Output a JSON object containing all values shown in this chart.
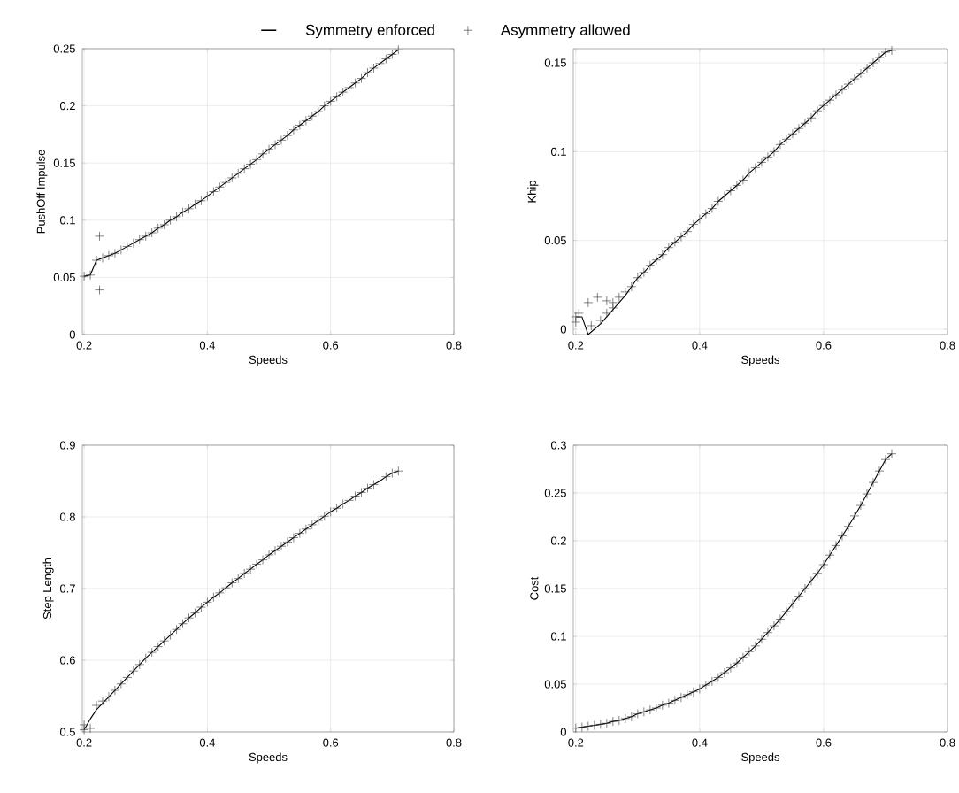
{
  "chart_data": [
    {
      "type": "line",
      "xlabel": "Speeds",
      "ylabel": "PushOff Impulse",
      "xlim": [
        0.197,
        0.8
      ],
      "ylim": [
        0,
        0.25
      ],
      "xticks": [
        0.2,
        0.4,
        0.6,
        0.8
      ],
      "yticks": [
        0,
        0.05,
        0.1,
        0.15,
        0.2,
        0.25
      ],
      "grid": true,
      "legend": "top",
      "series": [
        {
          "name": "Symmetry enforced",
          "color": "#000000",
          "x": [
            0.2,
            0.21,
            0.22,
            0.23,
            0.24,
            0.25,
            0.26,
            0.27,
            0.28,
            0.29,
            0.3,
            0.31,
            0.32,
            0.33,
            0.34,
            0.35,
            0.36,
            0.37,
            0.38,
            0.39,
            0.4,
            0.41,
            0.42,
            0.43,
            0.44,
            0.45,
            0.46,
            0.47,
            0.48,
            0.49,
            0.5,
            0.51,
            0.52,
            0.53,
            0.54,
            0.55,
            0.56,
            0.57,
            0.58,
            0.59,
            0.6,
            0.61,
            0.62,
            0.63,
            0.64,
            0.65,
            0.66,
            0.67,
            0.68,
            0.69,
            0.7,
            0.71
          ],
          "values": [
            0.051,
            0.052,
            0.065,
            0.067,
            0.069,
            0.071,
            0.074,
            0.077,
            0.08,
            0.083,
            0.086,
            0.089,
            0.093,
            0.096,
            0.1,
            0.103,
            0.107,
            0.11,
            0.114,
            0.117,
            0.121,
            0.125,
            0.129,
            0.133,
            0.137,
            0.141,
            0.145,
            0.149,
            0.153,
            0.158,
            0.162,
            0.166,
            0.17,
            0.174,
            0.179,
            0.183,
            0.187,
            0.191,
            0.195,
            0.2,
            0.204,
            0.208,
            0.212,
            0.216,
            0.22,
            0.224,
            0.229,
            0.233,
            0.237,
            0.241,
            0.245,
            0.249
          ]
        },
        {
          "name": "Asymmetry allowed",
          "type": "scatter",
          "marker": "cross",
          "color": "#333333",
          "x": [
            0.2,
            0.21,
            0.22,
            0.225,
            0.225,
            0.23,
            0.24,
            0.25,
            0.26,
            0.27,
            0.28,
            0.29,
            0.3,
            0.31,
            0.32,
            0.33,
            0.34,
            0.35,
            0.36,
            0.37,
            0.38,
            0.39,
            0.4,
            0.41,
            0.42,
            0.43,
            0.44,
            0.45,
            0.46,
            0.47,
            0.48,
            0.49,
            0.5,
            0.51,
            0.52,
            0.53,
            0.54,
            0.55,
            0.56,
            0.57,
            0.58,
            0.59,
            0.6,
            0.61,
            0.62,
            0.63,
            0.64,
            0.65,
            0.66,
            0.67,
            0.68,
            0.69,
            0.7,
            0.71
          ],
          "values": [
            0.051,
            0.052,
            0.065,
            0.086,
            0.039,
            0.067,
            0.069,
            0.071,
            0.074,
            0.077,
            0.08,
            0.083,
            0.086,
            0.089,
            0.093,
            0.096,
            0.1,
            0.103,
            0.107,
            0.11,
            0.114,
            0.117,
            0.121,
            0.125,
            0.129,
            0.133,
            0.137,
            0.141,
            0.145,
            0.149,
            0.153,
            0.158,
            0.162,
            0.166,
            0.17,
            0.174,
            0.179,
            0.183,
            0.187,
            0.191,
            0.195,
            0.2,
            0.204,
            0.208,
            0.212,
            0.216,
            0.22,
            0.224,
            0.229,
            0.233,
            0.237,
            0.241,
            0.245,
            0.249
          ]
        }
      ]
    },
    {
      "type": "line",
      "xlabel": "Speeds",
      "ylabel": "Khip",
      "xlim": [
        0.196,
        0.8
      ],
      "ylim": [
        -0.003,
        0.158
      ],
      "xticks": [
        0.2,
        0.4,
        0.6,
        0.8
      ],
      "yticks": [
        0,
        0.05,
        0.1,
        0.15
      ],
      "grid": true,
      "series": [
        {
          "color": "#000000",
          "x": [
            0.2,
            0.21,
            0.22,
            0.23,
            0.24,
            0.25,
            0.26,
            0.27,
            0.28,
            0.29,
            0.3,
            0.31,
            0.32,
            0.33,
            0.34,
            0.35,
            0.36,
            0.37,
            0.38,
            0.39,
            0.4,
            0.41,
            0.42,
            0.43,
            0.44,
            0.45,
            0.46,
            0.47,
            0.48,
            0.49,
            0.5,
            0.51,
            0.52,
            0.53,
            0.54,
            0.55,
            0.56,
            0.57,
            0.58,
            0.59,
            0.6,
            0.61,
            0.62,
            0.63,
            0.64,
            0.65,
            0.66,
            0.67,
            0.68,
            0.69,
            0.7,
            0.71
          ],
          "values": [
            0.007,
            0.007,
            -0.003,
            0.0,
            0.003,
            0.007,
            0.011,
            0.015,
            0.019,
            0.024,
            0.029,
            0.032,
            0.036,
            0.039,
            0.042,
            0.046,
            0.049,
            0.052,
            0.055,
            0.059,
            0.062,
            0.065,
            0.068,
            0.072,
            0.075,
            0.078,
            0.081,
            0.084,
            0.088,
            0.091,
            0.094,
            0.097,
            0.1,
            0.104,
            0.107,
            0.11,
            0.113,
            0.116,
            0.119,
            0.123,
            0.126,
            0.129,
            0.132,
            0.135,
            0.138,
            0.141,
            0.144,
            0.147,
            0.15,
            0.153,
            0.156,
            0.157
          ]
        },
        {
          "type": "scatter",
          "marker": "cross",
          "color": "#333333",
          "x": [
            0.2,
            0.2,
            0.205,
            0.22,
            0.225,
            0.235,
            0.24,
            0.25,
            0.25,
            0.26,
            0.26,
            0.27,
            0.28,
            0.29,
            0.3,
            0.31,
            0.32,
            0.33,
            0.34,
            0.35,
            0.36,
            0.37,
            0.38,
            0.39,
            0.4,
            0.41,
            0.42,
            0.43,
            0.44,
            0.45,
            0.46,
            0.47,
            0.48,
            0.49,
            0.5,
            0.51,
            0.52,
            0.53,
            0.54,
            0.55,
            0.56,
            0.57,
            0.58,
            0.59,
            0.6,
            0.61,
            0.62,
            0.63,
            0.64,
            0.65,
            0.66,
            0.67,
            0.68,
            0.69,
            0.7,
            0.71
          ],
          "values": [
            0.007,
            0.004,
            0.009,
            0.015,
            0.002,
            0.018,
            0.005,
            0.016,
            0.009,
            0.015,
            0.012,
            0.018,
            0.021,
            0.024,
            0.029,
            0.032,
            0.036,
            0.039,
            0.042,
            0.046,
            0.049,
            0.052,
            0.055,
            0.059,
            0.062,
            0.065,
            0.068,
            0.072,
            0.075,
            0.078,
            0.081,
            0.084,
            0.088,
            0.091,
            0.094,
            0.097,
            0.1,
            0.104,
            0.107,
            0.11,
            0.113,
            0.116,
            0.119,
            0.123,
            0.126,
            0.129,
            0.132,
            0.135,
            0.138,
            0.141,
            0.144,
            0.147,
            0.15,
            0.153,
            0.156,
            0.157
          ]
        }
      ]
    },
    {
      "type": "line",
      "xlabel": "Speeds",
      "ylabel": "Step Length",
      "xlim": [
        0.197,
        0.8
      ],
      "ylim": [
        0.5,
        0.9
      ],
      "xticks": [
        0.2,
        0.4,
        0.6,
        0.8
      ],
      "yticks": [
        0.5,
        0.6,
        0.7,
        0.8,
        0.9
      ],
      "grid": true,
      "series": [
        {
          "color": "#000000",
          "x": [
            0.2,
            0.21,
            0.22,
            0.23,
            0.24,
            0.25,
            0.26,
            0.27,
            0.28,
            0.29,
            0.3,
            0.31,
            0.32,
            0.33,
            0.34,
            0.35,
            0.36,
            0.37,
            0.38,
            0.39,
            0.4,
            0.41,
            0.42,
            0.43,
            0.44,
            0.45,
            0.46,
            0.47,
            0.48,
            0.49,
            0.5,
            0.51,
            0.52,
            0.53,
            0.54,
            0.55,
            0.56,
            0.57,
            0.58,
            0.59,
            0.6,
            0.61,
            0.62,
            0.63,
            0.64,
            0.65,
            0.66,
            0.67,
            0.68,
            0.69,
            0.7,
            0.71
          ],
          "values": [
            0.503,
            0.518,
            0.531,
            0.54,
            0.549,
            0.558,
            0.567,
            0.576,
            0.585,
            0.594,
            0.603,
            0.611,
            0.619,
            0.627,
            0.635,
            0.643,
            0.651,
            0.659,
            0.666,
            0.674,
            0.681,
            0.688,
            0.694,
            0.701,
            0.708,
            0.714,
            0.721,
            0.727,
            0.734,
            0.74,
            0.747,
            0.753,
            0.759,
            0.765,
            0.771,
            0.777,
            0.783,
            0.789,
            0.795,
            0.801,
            0.807,
            0.812,
            0.818,
            0.823,
            0.829,
            0.834,
            0.84,
            0.845,
            0.85,
            0.856,
            0.861,
            0.864
          ]
        },
        {
          "type": "scatter",
          "marker": "cross",
          "color": "#333333",
          "x": [
            0.2,
            0.2,
            0.21,
            0.22,
            0.23,
            0.24,
            0.25,
            0.26,
            0.27,
            0.28,
            0.29,
            0.3,
            0.31,
            0.32,
            0.33,
            0.34,
            0.35,
            0.36,
            0.37,
            0.38,
            0.39,
            0.4,
            0.41,
            0.42,
            0.43,
            0.44,
            0.45,
            0.46,
            0.47,
            0.48,
            0.49,
            0.5,
            0.51,
            0.52,
            0.53,
            0.54,
            0.55,
            0.56,
            0.57,
            0.58,
            0.59,
            0.6,
            0.61,
            0.62,
            0.63,
            0.64,
            0.65,
            0.66,
            0.67,
            0.68,
            0.69,
            0.7,
            0.71
          ],
          "values": [
            0.503,
            0.51,
            0.505,
            0.537,
            0.543,
            0.549,
            0.558,
            0.567,
            0.576,
            0.585,
            0.594,
            0.603,
            0.611,
            0.619,
            0.627,
            0.635,
            0.643,
            0.651,
            0.659,
            0.666,
            0.674,
            0.681,
            0.688,
            0.694,
            0.701,
            0.708,
            0.714,
            0.721,
            0.727,
            0.734,
            0.74,
            0.747,
            0.753,
            0.759,
            0.765,
            0.771,
            0.777,
            0.783,
            0.789,
            0.795,
            0.801,
            0.807,
            0.812,
            0.818,
            0.823,
            0.829,
            0.834,
            0.84,
            0.845,
            0.85,
            0.856,
            0.861,
            0.864
          ]
        }
      ]
    },
    {
      "type": "line",
      "xlabel": "Speeds",
      "ylabel": "Cost",
      "xlim": [
        0.196,
        0.8
      ],
      "ylim": [
        0,
        0.3
      ],
      "xticks": [
        0.2,
        0.4,
        0.6,
        0.8
      ],
      "yticks": [
        0,
        0.05,
        0.1,
        0.15,
        0.2,
        0.25,
        0.3
      ],
      "grid": true,
      "series": [
        {
          "color": "#000000",
          "x": [
            0.2,
            0.21,
            0.22,
            0.23,
            0.24,
            0.25,
            0.26,
            0.27,
            0.28,
            0.29,
            0.3,
            0.31,
            0.32,
            0.33,
            0.34,
            0.35,
            0.36,
            0.37,
            0.38,
            0.39,
            0.4,
            0.41,
            0.42,
            0.43,
            0.44,
            0.45,
            0.46,
            0.47,
            0.48,
            0.49,
            0.5,
            0.51,
            0.52,
            0.53,
            0.54,
            0.55,
            0.56,
            0.57,
            0.58,
            0.59,
            0.6,
            0.61,
            0.62,
            0.63,
            0.64,
            0.65,
            0.66,
            0.67,
            0.68,
            0.69,
            0.7,
            0.71
          ],
          "values": [
            0.004,
            0.005,
            0.006,
            0.007,
            0.008,
            0.009,
            0.011,
            0.012,
            0.014,
            0.016,
            0.019,
            0.021,
            0.023,
            0.025,
            0.028,
            0.03,
            0.033,
            0.036,
            0.039,
            0.042,
            0.045,
            0.049,
            0.053,
            0.057,
            0.062,
            0.067,
            0.072,
            0.078,
            0.084,
            0.09,
            0.097,
            0.104,
            0.111,
            0.118,
            0.126,
            0.134,
            0.142,
            0.15,
            0.158,
            0.166,
            0.175,
            0.185,
            0.195,
            0.205,
            0.215,
            0.226,
            0.237,
            0.249,
            0.261,
            0.273,
            0.285,
            0.291
          ]
        },
        {
          "type": "scatter",
          "marker": "cross",
          "color": "#333333",
          "x": [
            0.2,
            0.21,
            0.22,
            0.23,
            0.24,
            0.25,
            0.26,
            0.27,
            0.28,
            0.29,
            0.3,
            0.31,
            0.32,
            0.33,
            0.34,
            0.35,
            0.36,
            0.37,
            0.38,
            0.39,
            0.4,
            0.41,
            0.42,
            0.43,
            0.44,
            0.45,
            0.46,
            0.47,
            0.48,
            0.49,
            0.5,
            0.51,
            0.52,
            0.53,
            0.54,
            0.55,
            0.56,
            0.57,
            0.58,
            0.59,
            0.6,
            0.61,
            0.62,
            0.63,
            0.64,
            0.65,
            0.66,
            0.67,
            0.68,
            0.69,
            0.7,
            0.71
          ],
          "values": [
            0.004,
            0.005,
            0.006,
            0.007,
            0.008,
            0.009,
            0.011,
            0.012,
            0.014,
            0.016,
            0.019,
            0.021,
            0.023,
            0.025,
            0.028,
            0.03,
            0.033,
            0.036,
            0.039,
            0.042,
            0.045,
            0.049,
            0.053,
            0.057,
            0.062,
            0.067,
            0.072,
            0.078,
            0.084,
            0.09,
            0.097,
            0.104,
            0.111,
            0.118,
            0.126,
            0.134,
            0.142,
            0.15,
            0.158,
            0.166,
            0.175,
            0.185,
            0.195,
            0.205,
            0.215,
            0.226,
            0.237,
            0.249,
            0.261,
            0.273,
            0.285,
            0.291
          ]
        }
      ]
    }
  ]
}
